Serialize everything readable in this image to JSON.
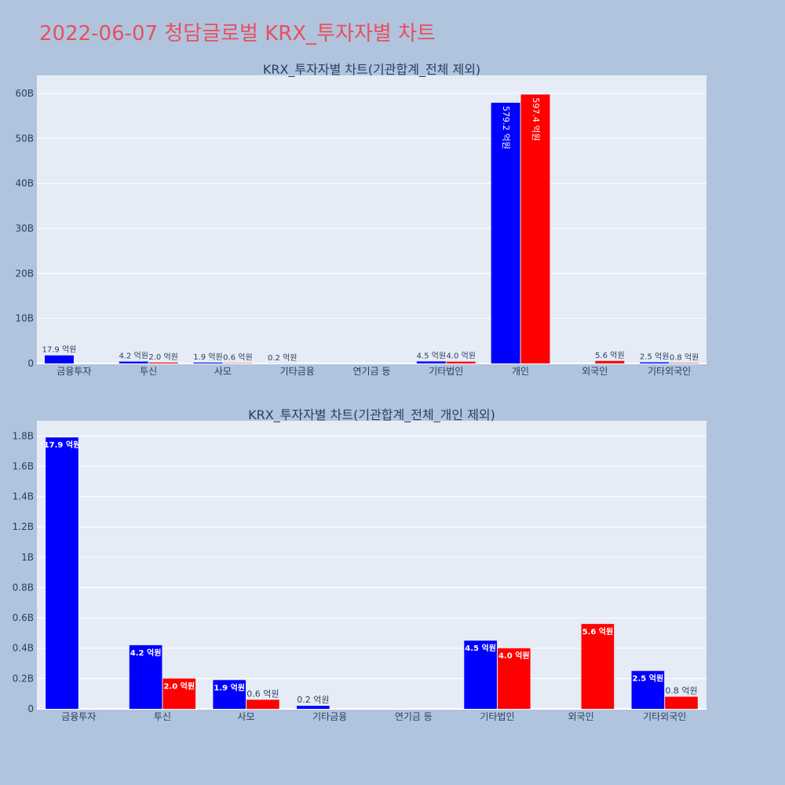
{
  "page": {
    "title": "2022-06-07 청담글로벌 KRX_투자자별 차트"
  },
  "colors": {
    "background": "#b0c4de",
    "plot_background": "#e5ecf6",
    "title": "#e8505b",
    "series_buy": "#0000ff",
    "series_sell": "#ff0000",
    "text": "#2a3f5f"
  },
  "chart_data": [
    {
      "type": "bar",
      "title": "KRX_투자자별 차트(기관합계_전체 제외)",
      "categories": [
        "금융투자",
        "투신",
        "사모",
        "기타금융",
        "연기금 등",
        "기타법인",
        "개인",
        "외국인",
        "기타외국인"
      ],
      "series": [
        {
          "color": "#0000ff",
          "values": [
            1790000000,
            420000000,
            190000000,
            20000000,
            0,
            450000000,
            57920000000,
            0,
            250000000
          ],
          "labels": [
            "17.9 억원",
            "4.2 억원",
            "1.9 억원",
            "0.2 억원",
            "",
            "4.5 억원",
            "579.2 억원",
            "",
            "2.5 억원"
          ]
        },
        {
          "color": "#ff0000",
          "values": [
            0,
            200000000,
            60000000,
            0,
            0,
            400000000,
            59740000000,
            560000000,
            80000000
          ],
          "labels": [
            "",
            "2.0 억원",
            "0.6 억원",
            "",
            "",
            "4.0 억원",
            "597.4 억원",
            "5.6 억원",
            "0.8 억원"
          ]
        }
      ],
      "ylim": [
        0,
        64000000000
      ],
      "yticks": [
        0,
        10000000000,
        20000000000,
        30000000000,
        40000000000,
        50000000000,
        60000000000
      ],
      "yticklabels": [
        "0",
        "10B",
        "20B",
        "30B",
        "40B",
        "50B",
        "60B"
      ],
      "grid": true,
      "legend": "none"
    },
    {
      "type": "bar",
      "title": "KRX_투자자별 차트(기관합계_전체_개인 제외)",
      "categories": [
        "금융투자",
        "투신",
        "사모",
        "기타금융",
        "연기금 등",
        "기타법인",
        "외국인",
        "기타외국인"
      ],
      "series": [
        {
          "color": "#0000ff",
          "values": [
            1790000000,
            420000000,
            190000000,
            20000000,
            0,
            450000000,
            0,
            250000000
          ],
          "labels": [
            "17.9 억원",
            "4.2 억원",
            "1.9 억원",
            "0.2 억원",
            "",
            "4.5 억원",
            "",
            "2.5 억원"
          ]
        },
        {
          "color": "#ff0000",
          "values": [
            0,
            200000000,
            60000000,
            0,
            0,
            400000000,
            560000000,
            80000000
          ],
          "labels": [
            "",
            "2.0 억원",
            "0.6 억원",
            "",
            "",
            "4.0 억원",
            "5.6 억원",
            "0.8 억원"
          ]
        }
      ],
      "ylim": [
        0,
        1900000000
      ],
      "yticks": [
        0,
        200000000,
        400000000,
        600000000,
        800000000,
        1000000000,
        1200000000,
        1400000000,
        1600000000,
        1800000000
      ],
      "yticklabels": [
        "0",
        "0.2B",
        "0.4B",
        "0.6B",
        "0.8B",
        "1B",
        "1.2B",
        "1.4B",
        "1.6B",
        "1.8B"
      ],
      "grid": true,
      "legend": "none"
    }
  ]
}
